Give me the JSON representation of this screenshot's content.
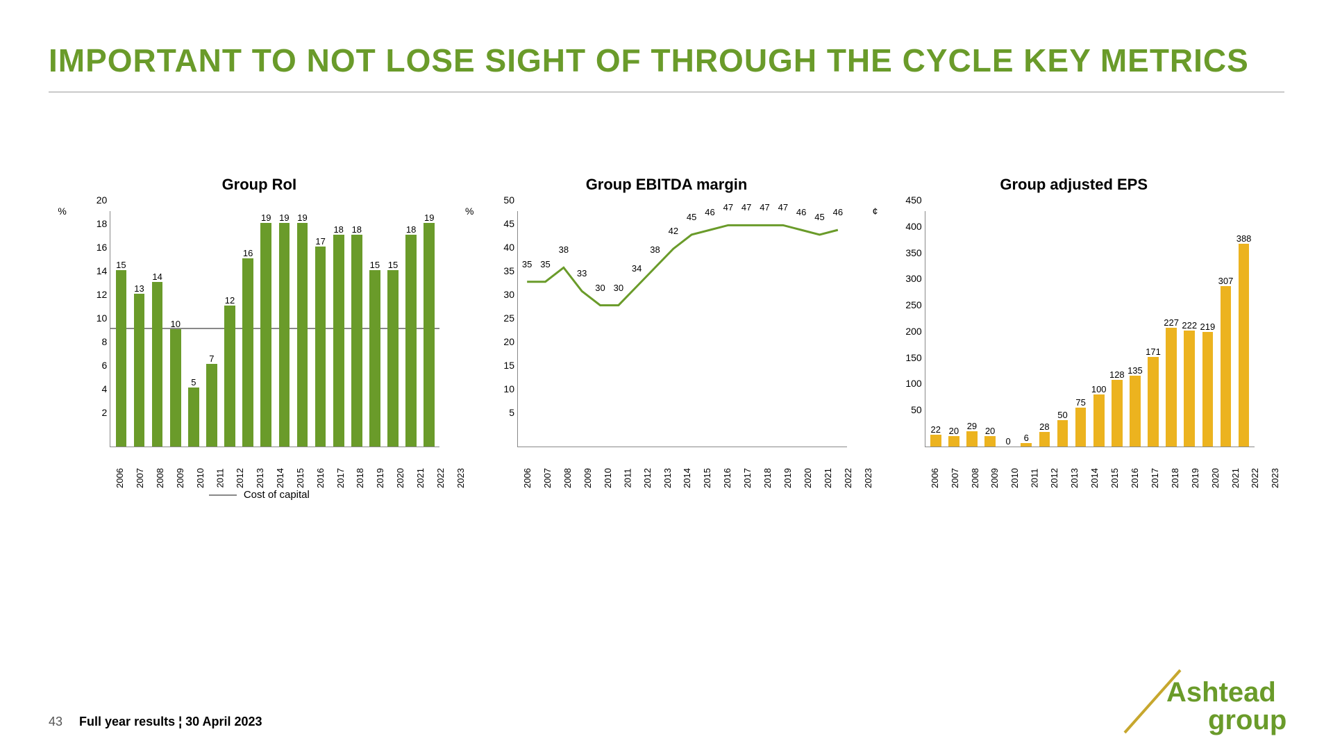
{
  "title": {
    "text": "IMPORTANT TO NOT LOSE SIGHT OF THROUGH THE CYCLE KEY METRICS",
    "color": "#6a9b2a",
    "fontsize": 46
  },
  "colors": {
    "green_bar": "#6a9b2a",
    "gold_bar": "#ecb31f",
    "line": "#6a9b2a",
    "ref_line": "#888888",
    "axis": "#888888",
    "text": "#222222",
    "bg": "#ffffff"
  },
  "charts": {
    "roi": {
      "title": "Group RoI",
      "type": "bar",
      "unit": "%",
      "categories": [
        "2006",
        "2007",
        "2008",
        "2009",
        "2010",
        "2011",
        "2012",
        "2013",
        "2014",
        "2015",
        "2016",
        "2017",
        "2018",
        "2019",
        "2020",
        "2021",
        "2022",
        "2023"
      ],
      "values": [
        15,
        13,
        14,
        10,
        5,
        7,
        12,
        16,
        19,
        19,
        19,
        17,
        18,
        18,
        15,
        15,
        18,
        19
      ],
      "bar_color": "#6a9b2a",
      "ymin": 0,
      "ymax": 20,
      "yticks": [
        2,
        4,
        6,
        8,
        10,
        12,
        14,
        16,
        18,
        20
      ],
      "reference_line": {
        "value": 10,
        "label": "Cost of capital",
        "color": "#888888"
      },
      "label_fontsize": 13,
      "title_fontsize": 22
    },
    "ebitda": {
      "title": "Group EBITDA margin",
      "type": "line",
      "unit": "%",
      "categories": [
        "2006",
        "2007",
        "2008",
        "2009",
        "2010",
        "2011",
        "2012",
        "2013",
        "2014",
        "2015",
        "2016",
        "2017",
        "2018",
        "2019",
        "2020",
        "2021",
        "2022",
        "2023"
      ],
      "values": [
        35,
        35,
        38,
        33,
        30,
        30,
        34,
        38,
        42,
        45,
        46,
        47,
        47,
        47,
        47,
        46,
        45,
        46
      ],
      "line_color": "#6a9b2a",
      "line_width": 3,
      "ymin": 0,
      "ymax": 50,
      "yticks": [
        5,
        10,
        15,
        20,
        25,
        30,
        35,
        40,
        45,
        50
      ],
      "label_fontsize": 13,
      "title_fontsize": 22
    },
    "eps": {
      "title": "Group adjusted EPS",
      "type": "bar",
      "unit": "¢",
      "categories": [
        "2006",
        "2007",
        "2008",
        "2009",
        "2010",
        "2011",
        "2012",
        "2013",
        "2014",
        "2015",
        "2016",
        "2017",
        "2018",
        "2019",
        "2020",
        "2021",
        "2022",
        "2023"
      ],
      "values": [
        22,
        20,
        29,
        20,
        0,
        6,
        28,
        50,
        75,
        100,
        128,
        135,
        171,
        227,
        222,
        219,
        307,
        388
      ],
      "bar_color": "#ecb31f",
      "ymin": 0,
      "ymax": 450,
      "yticks": [
        50,
        100,
        150,
        200,
        250,
        300,
        350,
        400,
        450
      ],
      "label_fontsize": 13,
      "title_fontsize": 22
    }
  },
  "footer": {
    "page": "43",
    "text": "Full year results ¦ 30 April 2023"
  },
  "logo": {
    "line1": "Ashtead",
    "line2": "group",
    "color": "#6a9b2a",
    "slash_color": "#c7a72e"
  }
}
